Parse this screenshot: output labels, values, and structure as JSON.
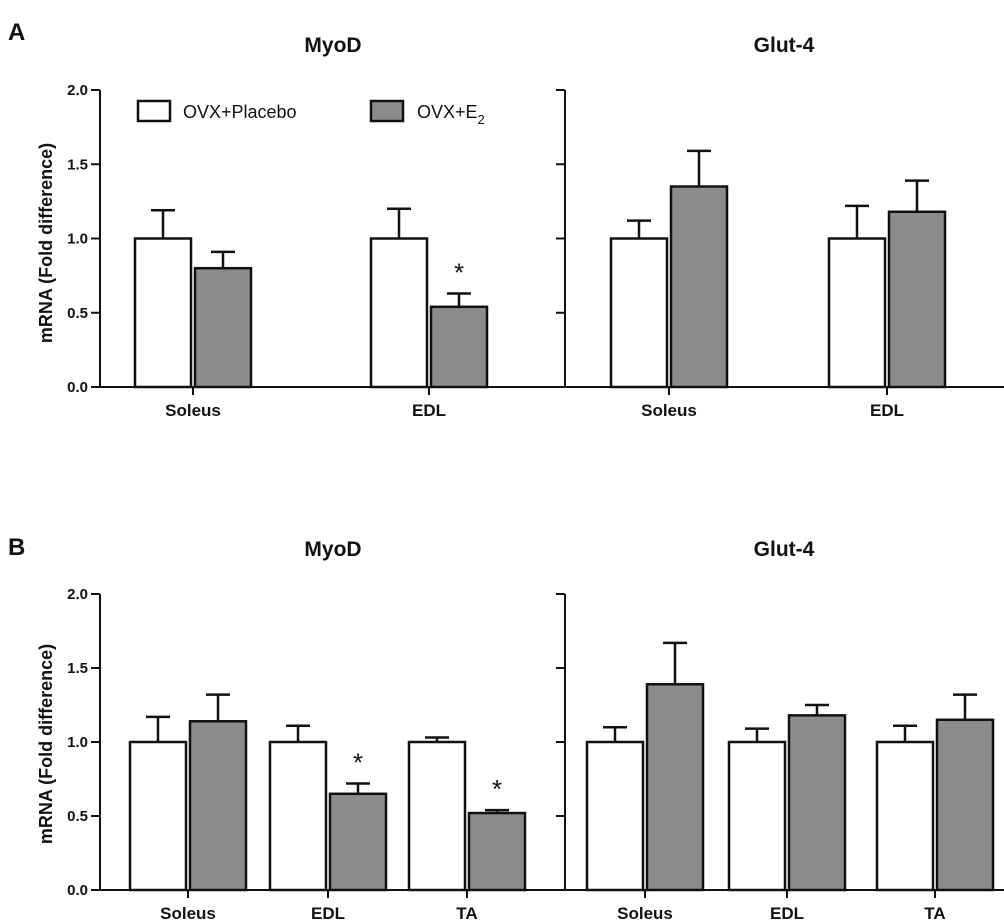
{
  "panels": [
    {
      "letter": "A",
      "ylabel": "mRNA (Fold difference)",
      "legend": [
        {
          "text": "OVX+Placebo",
          "sub": ""
        },
        {
          "text": "OVX+E",
          "sub": "2"
        }
      ]
    },
    {
      "letter": "B",
      "ylabel": "mRNA (Fold difference)",
      "legend": []
    }
  ],
  "colors": {
    "placebo": "#ffffff",
    "e2": "#8c8c8c",
    "stroke": "#111111"
  },
  "chart_data": [
    {
      "type": "bar",
      "panel": "A",
      "title": "MyoD",
      "categories": [
        "Soleus",
        "EDL"
      ],
      "series": [
        {
          "name": "OVX+Placebo",
          "values": [
            1.0,
            1.0
          ],
          "errors": [
            0.19,
            0.2
          ]
        },
        {
          "name": "OVX+E2",
          "values": [
            0.8,
            0.54
          ],
          "errors": [
            0.11,
            0.09
          ]
        }
      ],
      "significance": [
        null,
        "*"
      ],
      "ylim": [
        0,
        2
      ],
      "yticks": [
        "0.0",
        "0.5",
        "1.0",
        "1.5",
        "2.0"
      ],
      "ylabel": "mRNA (Fold difference)",
      "legend_position": "top-left"
    },
    {
      "type": "bar",
      "panel": "A",
      "title": "Glut-4",
      "categories": [
        "Soleus",
        "EDL"
      ],
      "series": [
        {
          "name": "OVX+Placebo",
          "values": [
            1.0,
            1.0
          ],
          "errors": [
            0.12,
            0.22
          ]
        },
        {
          "name": "OVX+E2",
          "values": [
            1.35,
            1.18
          ],
          "errors": [
            0.24,
            0.21
          ]
        }
      ],
      "significance": [
        null,
        null
      ],
      "ylim": [
        0,
        2
      ]
    },
    {
      "type": "bar",
      "panel": "B",
      "title": "MyoD",
      "categories": [
        "Soleus",
        "EDL",
        "TA"
      ],
      "series": [
        {
          "name": "OVX+Placebo",
          "values": [
            1.0,
            1.0,
            1.0
          ],
          "errors": [
            0.17,
            0.11,
            0.03
          ]
        },
        {
          "name": "OVX+E2",
          "values": [
            1.14,
            0.65,
            0.52
          ],
          "errors": [
            0.18,
            0.07,
            0.02
          ]
        }
      ],
      "significance": [
        null,
        "*",
        "*"
      ],
      "ylim": [
        0,
        2
      ],
      "yticks": [
        "0.0",
        "0.5",
        "1.0",
        "1.5",
        "2.0"
      ],
      "ylabel": "mRNA (Fold difference)"
    },
    {
      "type": "bar",
      "panel": "B",
      "title": "Glut-4",
      "categories": [
        "Soleus",
        "EDL",
        "TA"
      ],
      "series": [
        {
          "name": "OVX+Placebo",
          "values": [
            1.0,
            1.0,
            1.0
          ],
          "errors": [
            0.1,
            0.09,
            0.11
          ]
        },
        {
          "name": "OVX+E2",
          "values": [
            1.39,
            1.18,
            1.15
          ],
          "errors": [
            0.28,
            0.07,
            0.17
          ]
        }
      ],
      "significance": [
        null,
        null,
        null
      ],
      "ylim": [
        0,
        2
      ]
    }
  ]
}
